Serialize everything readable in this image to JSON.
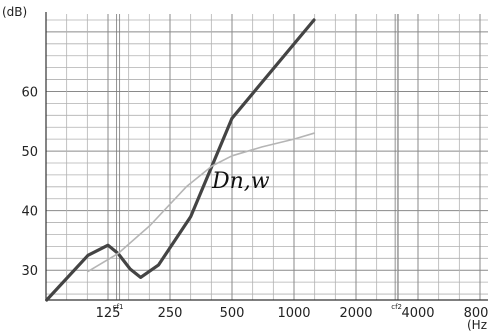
{
  "chart_data": {
    "type": "line",
    "y_unit_label": "(dB)",
    "x_unit_label": "(Hz",
    "y_ticks": [
      30,
      40,
      50,
      60
    ],
    "x_ticks": [
      "125",
      "250",
      "500",
      "1000",
      "2000",
      "4000",
      "800"
    ],
    "x_small_labels": [
      "cf1",
      "cf2"
    ],
    "ylim": [
      25,
      72
    ],
    "grid": true,
    "series": [
      {
        "name": "Dn,w",
        "color": "#444444",
        "x": [
          63,
          100,
          125,
          140,
          160,
          180,
          220,
          315,
          500,
          1250
        ],
        "y": [
          25,
          32.5,
          34.2,
          32.8,
          30.2,
          28.8,
          30.9,
          39,
          55.5,
          72
        ]
      },
      {
        "name": "",
        "color": "#b5b5b5",
        "x": [
          100,
          140,
          200,
          300,
          400,
          500,
          700,
          1000,
          1250
        ],
        "y": [
          29.8,
          32.8,
          37.5,
          44,
          47.5,
          49.2,
          50.7,
          52,
          53
        ]
      }
    ]
  }
}
